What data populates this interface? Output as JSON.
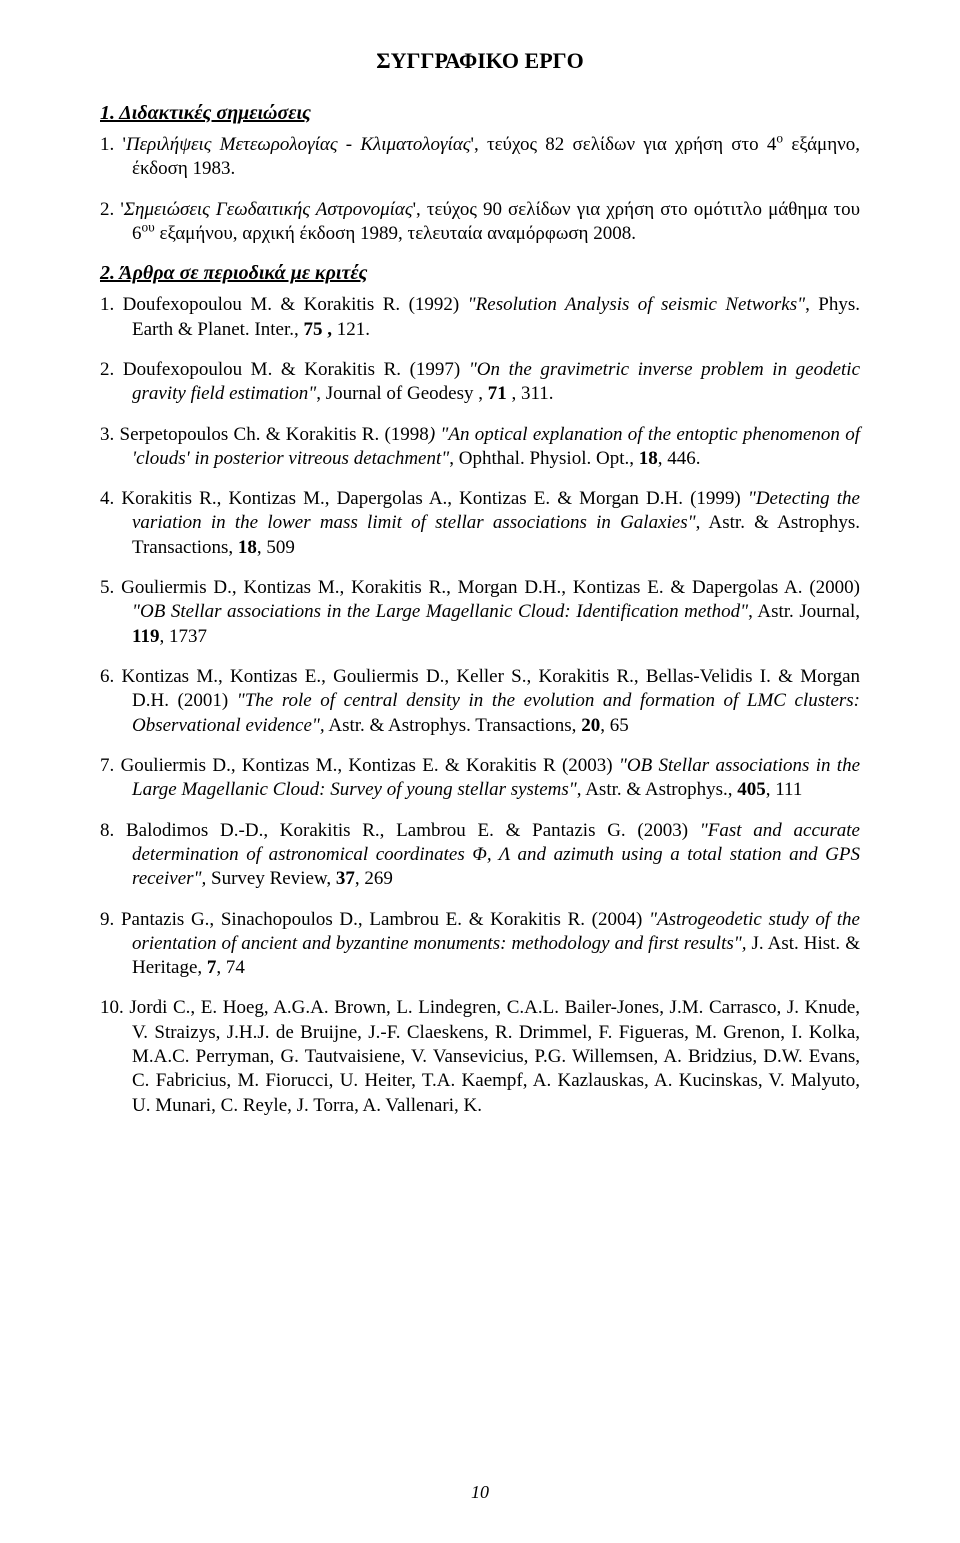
{
  "title": "ΣΥΓΓΡΑΦΙΚΟ ΕΡΓΟ",
  "section1": {
    "heading": "1.  Διδακτικές σημειώσεις",
    "items": [
      {
        "num": "1.",
        "pre": "'",
        "title": "Περιλήψεις Μετεωρολογίας - Κλιματολογίας",
        "rest": ", τεύχος 82 σελίδων για χρήση στο 4",
        "sup": "ο",
        "tail": " εξάμηνο, έκδοση 1983."
      },
      {
        "num": "2.",
        "pre": "'",
        "title": "Σημειώσεις Γεωδαιτικής Αστρονομίας",
        "rest": ", τεύχος 90 σελίδων για χρήση στο ομότιτλο μάθημα του 6",
        "sup": "ου",
        "tail": " εξαμήνου, αρχική έκδοση 1989, τελευταία αναμόρφωση 2008."
      }
    ]
  },
  "section2": {
    "heading": "2.  Άρθρα σε περιοδικά με κριτές",
    "items": [
      {
        "num": "1.",
        "authors": "Doufexopoulou M. & Korakitis R. (1992) ",
        "ital": "\"Resolution Analysis of seismic Networks\"",
        "tail1": ", Phys. Earth & Planet. Inter., ",
        "bold1": "75 ,",
        "tail2": " 121."
      },
      {
        "num": "2.",
        "authors": "Doufexopoulou M. & Korakitis R. (1997) ",
        "ital": "\"On the gravimetric inverse problem in geodetic gravity field estimation\"",
        "tail1": ",  Journal of Geodesy , ",
        "bold1": "71",
        "tail2": " , 311."
      },
      {
        "num": "3.",
        "authors": "Serpetopoulos Ch. & Korakitis R. (1998",
        "ital": ") \"An optical explanation of the entoptic phenomenon of 'clouds' in posterior vitreous detachment\"",
        "tail1": ", Ophthal. Physiol. Opt., ",
        "bold1": "18",
        "tail2": ", 446."
      },
      {
        "num": "4.",
        "authors": "Korakitis R., Kontizas M., Dapergolas A., Kontizas E. & Morgan D.H. (1999) ",
        "ital": "\"Detecting the variation in the lower mass limit of stellar associations in Galaxies\"",
        "tail1": ", Astr. & Astrophys. Transactions,  ",
        "bold1": "18",
        "tail2": ", 509"
      },
      {
        "num": "5.",
        "authors": "Gouliermis D., Kontizas M., Korakitis R., Morgan D.H., Kontizas E. & Dapergolas A. (2000) ",
        "ital": "\"OB Stellar associations in the Large Magellanic Cloud: Identification method\"",
        "tail1": ", Astr. Journal, ",
        "bold1": "119",
        "tail2": ",  1737"
      },
      {
        "num": "6.",
        "authors": "Kontizas M., Kontizas E., Gouliermis D., Keller S., Korakitis R., Bellas-Velidis I. & Morgan D.H. (2001) ",
        "ital": "\"The role of central density in the evolution and formation of LMC clusters: Observational evidence\",",
        "tail1": " Astr. & Astrophys. Transactions,  ",
        "bold1": "20",
        "tail2": ", 65"
      },
      {
        "num": "7.",
        "authors": "Gouliermis D., Kontizas M., Kontizas E. & Korakitis R (2003) ",
        "ital": "\"OB Stellar associations in the Large Magellanic Cloud: Survey of young stellar systems\"",
        "tail1": ", Astr. & Astrophys., ",
        "bold1": "405",
        "tail2": ", 111"
      },
      {
        "num": "8.",
        "authors": "Balodimos D.-D., Korakitis R., Lambrou E. & Pantazis G. (2003) ",
        "ital": "\"Fast and accurate determination of astronomical coordinates Φ, Λ and azimuth using a total station and GPS receiver\",",
        "tail1": " Survey Review, ",
        "bold1": "37",
        "tail2": ", 269"
      },
      {
        "num": "9.",
        "authors": "Pantazis G., Sinachopoulos D., Lambrou E. & Korakitis R. (2004) ",
        "ital": "\"Astrogeodetic study of the orientation of ancient and byzantine monuments: methodology and first results\",",
        "tail1": " J. Ast. Hist. & Heritage, ",
        "bold1": "7",
        "tail2": ", 74"
      },
      {
        "num": "10.",
        "authors": "Jordi C., E. Hoeg, A.G.A. Brown, L. Lindegren, C.A.L. Bailer-Jones, J.M. Carrasco, J. Knude, V. Straizys, J.H.J. de Bruijne, J.-F. Claeskens, R. Drimmel, F. Figueras, M. Grenon, I. Kolka, M.A.C. Perryman, G. Tautvaisiene, V. Vansevicius, P.G. Willemsen, A. Bridzius, D.W. Evans, C. Fabricius, M. Fiorucci, U. Heiter, T.A. Kaempf, A. Kazlauskas, A. Kucinskas, V. Malyuto, U. Munari, C. Reyle, J. Torra, A. Vallenari, K.",
        "ital": "",
        "tail1": "",
        "bold1": "",
        "tail2": ""
      }
    ]
  },
  "pageNumber": "10"
}
